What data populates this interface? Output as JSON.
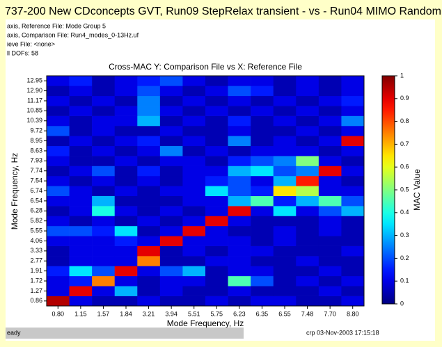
{
  "window_title": "737-200 New CDconcepts GVT,  Run09 StepRelax transient - vs - Run04 MIMO Random",
  "info_lines": [
    "axis, Reference  File:  Mode Group 5",
    "axis, Comparison File:  Run4_modes_0-13Hz.uf",
    "ieve File:        <none>",
    "ll DOFs: 58"
  ],
  "status_left": "eady",
  "status_right": "crp   03-Nov-2003 17:15:18",
  "chart_data": {
    "type": "heatmap",
    "title": "Cross-MAC   Y: Comparison File vs X: Reference File",
    "x_label": "Mode Frequency, Hz",
    "y_label": "Mode Frequency, Hz",
    "colorbar_label": "MAC Value",
    "colormap": "jet",
    "categories": [
      "0.80",
      "1.15",
      "1.57",
      "1.84",
      "3.21",
      "3.94",
      "5.51",
      "5.75",
      "6.23",
      "6.35",
      "6.55",
      "7.48",
      "7.70",
      "8.80"
    ],
    "y_categories": [
      "0.86",
      "1.27",
      "1.72",
      "1.91",
      "2.77",
      "3.33",
      "4.06",
      "5.55",
      "5.82",
      "6.28",
      "6.54",
      "6.74",
      "7.54",
      "7.74",
      "7.93",
      "8.63",
      "8.95",
      "9.72",
      "10.39",
      "10.85",
      "11.17",
      "12.90",
      "12.95"
    ],
    "z": [
      [
        0.95,
        0.1,
        0.05,
        0.05,
        0.1,
        0.05,
        0.05,
        0.1,
        0.05,
        0.1,
        0.1,
        0.05,
        0.05,
        0.1
      ],
      [
        0.1,
        0.9,
        0.1,
        0.3,
        0.05,
        0.1,
        0.05,
        0.05,
        0.1,
        0.05,
        0.05,
        0.05,
        0.1,
        0.05
      ],
      [
        0.1,
        0.15,
        0.75,
        0.1,
        0.05,
        0.1,
        0.1,
        0.05,
        0.45,
        0.2,
        0.05,
        0.1,
        0.05,
        0.1
      ],
      [
        0.15,
        0.35,
        0.2,
        0.9,
        0.1,
        0.2,
        0.3,
        0.05,
        0.1,
        0.1,
        0.05,
        0.05,
        0.1,
        0.05
      ],
      [
        0.05,
        0.1,
        0.1,
        0.1,
        0.75,
        0.05,
        0.05,
        0.1,
        0.1,
        0.05,
        0.05,
        0.1,
        0.05,
        0.05
      ],
      [
        0.05,
        0.1,
        0.1,
        0.1,
        0.9,
        0.05,
        0.1,
        0.05,
        0.1,
        0.1,
        0.05,
        0.05,
        0.05,
        0.1
      ],
      [
        0.1,
        0.1,
        0.1,
        0.15,
        0.1,
        0.9,
        0.1,
        0.1,
        0.1,
        0.05,
        0.1,
        0.05,
        0.05,
        0.05
      ],
      [
        0.2,
        0.2,
        0.15,
        0.35,
        0.05,
        0.1,
        0.9,
        0.1,
        0.05,
        0.05,
        0.1,
        0.05,
        0.1,
        0.05
      ],
      [
        0.1,
        0.05,
        0.1,
        0.05,
        0.1,
        0.05,
        0.1,
        0.9,
        0.1,
        0.05,
        0.05,
        0.05,
        0.1,
        0.05
      ],
      [
        0.05,
        0.1,
        0.4,
        0.1,
        0.05,
        0.1,
        0.05,
        0.1,
        0.9,
        0.1,
        0.35,
        0.1,
        0.2,
        0.3
      ],
      [
        0.1,
        0.1,
        0.3,
        0.05,
        0.05,
        0.05,
        0.1,
        0.1,
        0.3,
        0.45,
        0.15,
        0.3,
        0.45,
        0.2
      ],
      [
        0.2,
        0.1,
        0.05,
        0.1,
        0.05,
        0.1,
        0.1,
        0.35,
        0.2,
        0.15,
        0.65,
        0.55,
        0.1,
        0.1
      ],
      [
        0.1,
        0.05,
        0.1,
        0.05,
        0.1,
        0.05,
        0.1,
        0.15,
        0.2,
        0.1,
        0.3,
        0.85,
        0.1,
        0.05
      ],
      [
        0.05,
        0.1,
        0.2,
        0.05,
        0.15,
        0.05,
        0.1,
        0.1,
        0.3,
        0.35,
        0.2,
        0.25,
        0.9,
        0.1
      ],
      [
        0.1,
        0.05,
        0.05,
        0.1,
        0.05,
        0.1,
        0.1,
        0.05,
        0.15,
        0.2,
        0.25,
        0.5,
        0.1,
        0.05
      ],
      [
        0.15,
        0.05,
        0.1,
        0.05,
        0.1,
        0.25,
        0.05,
        0.1,
        0.05,
        0.1,
        0.1,
        0.1,
        0.05,
        0.1
      ],
      [
        0.05,
        0.1,
        0.05,
        0.1,
        0.15,
        0.05,
        0.1,
        0.05,
        0.25,
        0.05,
        0.1,
        0.05,
        0.1,
        0.9
      ],
      [
        0.2,
        0.05,
        0.1,
        0.05,
        0.05,
        0.1,
        0.05,
        0.05,
        0.1,
        0.05,
        0.05,
        0.1,
        0.05,
        0.1
      ],
      [
        0.1,
        0.05,
        0.1,
        0.1,
        0.3,
        0.05,
        0.1,
        0.05,
        0.15,
        0.05,
        0.1,
        0.05,
        0.1,
        0.25
      ],
      [
        0.05,
        0.1,
        0.05,
        0.1,
        0.25,
        0.1,
        0.05,
        0.1,
        0.05,
        0.1,
        0.05,
        0.1,
        0.05,
        0.1
      ],
      [
        0.1,
        0.05,
        0.1,
        0.05,
        0.25,
        0.05,
        0.1,
        0.05,
        0.1,
        0.05,
        0.1,
        0.05,
        0.1,
        0.15
      ],
      [
        0.05,
        0.1,
        0.05,
        0.1,
        0.2,
        0.1,
        0.05,
        0.1,
        0.2,
        0.15,
        0.05,
        0.1,
        0.05,
        0.1
      ],
      [
        0.1,
        0.15,
        0.05,
        0.1,
        0.15,
        0.2,
        0.1,
        0.05,
        0.1,
        0.1,
        0.05,
        0.1,
        0.05,
        0.1
      ]
    ],
    "zlim": [
      0,
      1
    ],
    "zticks": [
      0,
      0.1,
      0.2,
      0.3,
      0.4,
      0.5,
      0.6,
      0.7,
      0.8,
      0.9,
      1
    ]
  }
}
